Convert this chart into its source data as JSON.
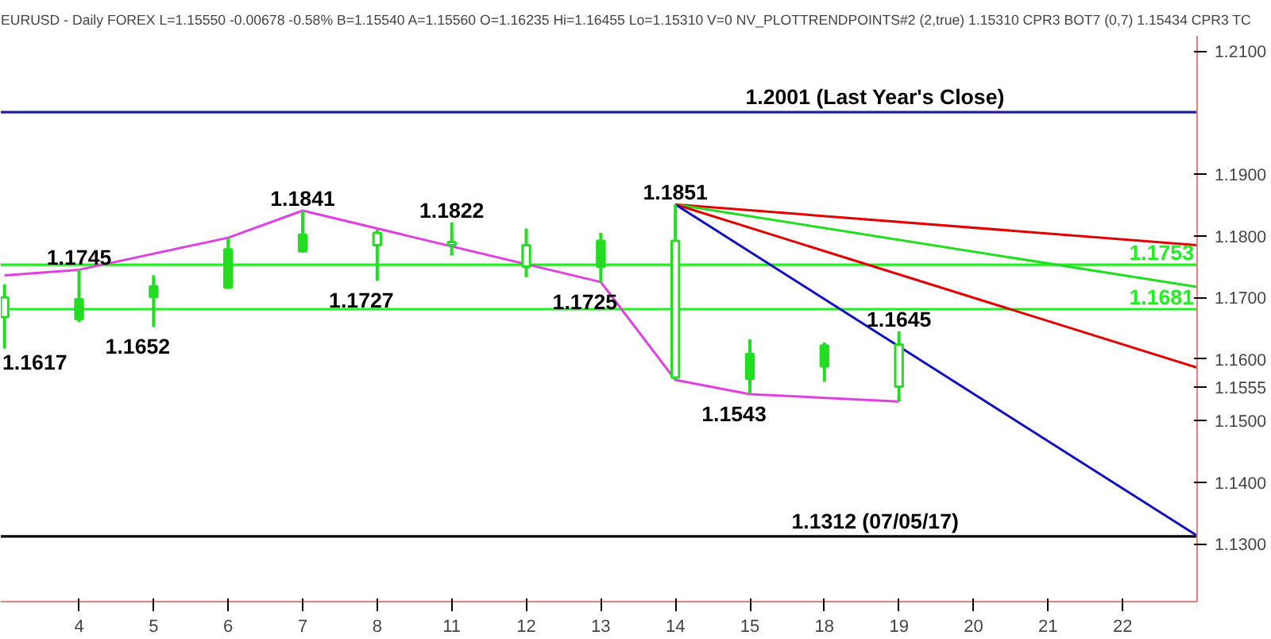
{
  "chart_data": {
    "type": "candlestick",
    "title": "EURUSD - Daily  FOREX  L=1.15550  -0.00678  -0.58%  B=1.15540  A=1.15560  O=1.16235  Hi=1.16455  Lo=1.15310  V=0  NV_PLOTTRENDPOINTS#2 (2,true)  1.15310  CPR3 BOT7 (0,7)  1.15434  CPR3 TC",
    "categories": [
      null,
      "4",
      "5",
      "6",
      "7",
      "8",
      "11",
      "12",
      "13",
      "14",
      "15",
      "18",
      "19",
      "20",
      "21",
      "22",
      null
    ],
    "color": "#22dd22",
    "ohlc": [
      [
        1.17,
        1.1721,
        1.1617,
        1.1668
      ],
      [
        1.1665,
        1.1745,
        1.166,
        1.1697
      ],
      [
        1.1701,
        1.1736,
        1.1652,
        1.1718
      ],
      [
        1.1716,
        1.1797,
        1.1714,
        1.1778
      ],
      [
        1.1775,
        1.1841,
        1.1773,
        1.1802
      ],
      [
        1.1805,
        1.181,
        1.1727,
        1.1785
      ],
      [
        1.179,
        1.1822,
        1.1768,
        1.1785
      ],
      [
        1.1785,
        1.1812,
        1.1733,
        1.175
      ],
      [
        1.175,
        1.1805,
        1.1725,
        1.1792
      ],
      [
        1.1792,
        1.1851,
        1.1566,
        1.157
      ],
      [
        1.1568,
        1.1632,
        1.1543,
        1.1608
      ],
      [
        1.1588,
        1.1627,
        1.1563,
        1.1622
      ],
      [
        1.16235,
        1.1645,
        1.1531,
        1.1555
      ],
      null,
      null,
      null,
      null
    ],
    "series": [
      {
        "type": "line",
        "color": "#e040e0",
        "values": [
          1.1736,
          1.1745,
          null,
          1.1797,
          1.1841,
          null,
          null,
          null,
          1.1725,
          1.1566,
          1.1543,
          null,
          1.1531,
          null,
          null,
          null,
          null
        ]
      },
      {
        "type": "line",
        "color": "#e00000",
        "values": [
          null,
          null,
          null,
          null,
          null,
          null,
          null,
          null,
          null,
          1.1851,
          null,
          null,
          null,
          null,
          null,
          null,
          1.1785
        ]
      },
      {
        "type": "line",
        "color": "#22dd22",
        "values": [
          null,
          null,
          null,
          null,
          null,
          null,
          null,
          null,
          null,
          1.1851,
          null,
          null,
          null,
          null,
          null,
          null,
          1.1717
        ]
      },
      {
        "type": "line",
        "color": "#e00000",
        "values": [
          null,
          null,
          null,
          null,
          null,
          null,
          null,
          null,
          null,
          1.1851,
          null,
          null,
          null,
          null,
          null,
          null,
          1.1586
        ]
      },
      {
        "type": "line",
        "color": "#1010c0",
        "values": [
          null,
          null,
          null,
          null,
          null,
          null,
          null,
          null,
          null,
          1.1851,
          null,
          null,
          null,
          null,
          null,
          null,
          1.1313
        ]
      }
    ],
    "ref_lines": [
      {
        "axis": "y",
        "value": 1.2001,
        "label": "1.2001 (Last Year's Close)",
        "color": "#2020a0"
      },
      {
        "axis": "y",
        "value": 1.1753,
        "label": "1.1753",
        "color": "#22ee22"
      },
      {
        "axis": "y",
        "value": 1.1681,
        "label": "1.1681",
        "color": "#22ee22"
      },
      {
        "axis": "y",
        "value": 1.1312,
        "label": "1.1312 (07/05/17)",
        "color": "#000000"
      }
    ],
    "annotations": [
      "1.1617",
      {
        "text": "1.1745",
        "x": "4",
        "y": 1.1745
      },
      {
        "text": "1.1652",
        "x": "5",
        "y": 1.1652
      },
      {
        "text": "1.1841",
        "x": "7",
        "y": 1.1841
      },
      {
        "text": "1.1727",
        "x": "8",
        "y": 1.1727
      },
      {
        "text": "1.1822",
        "x": "11",
        "y": 1.1822
      },
      {
        "text": "1.1725",
        "x": "13",
        "y": 1.1725
      },
      {
        "text": "1.1851",
        "x": "14",
        "y": 1.1851
      },
      {
        "text": "1.1543",
        "x": "15",
        "y": 1.1543
      },
      {
        "text": "1.1645",
        "x": "19",
        "y": 1.1645
      }
    ],
    "ylim": [
      1.1206,
      1.2125
    ],
    "yticks": [
      {
        "value": 1.13,
        "label": "1.1300"
      },
      {
        "value": 1.14,
        "label": "1.1400"
      },
      {
        "value": 1.15,
        "label": "1.1500"
      },
      {
        "value": 1.1555,
        "label": "1.1555"
      },
      {
        "value": 1.16,
        "label": "1.1600"
      },
      {
        "value": 1.17,
        "label": "1.1700"
      },
      {
        "value": 1.18,
        "label": "1.1800"
      },
      {
        "value": 1.19,
        "label": "1.1900"
      },
      {
        "value": 1.21,
        "label": "1.2100"
      }
    ]
  }
}
